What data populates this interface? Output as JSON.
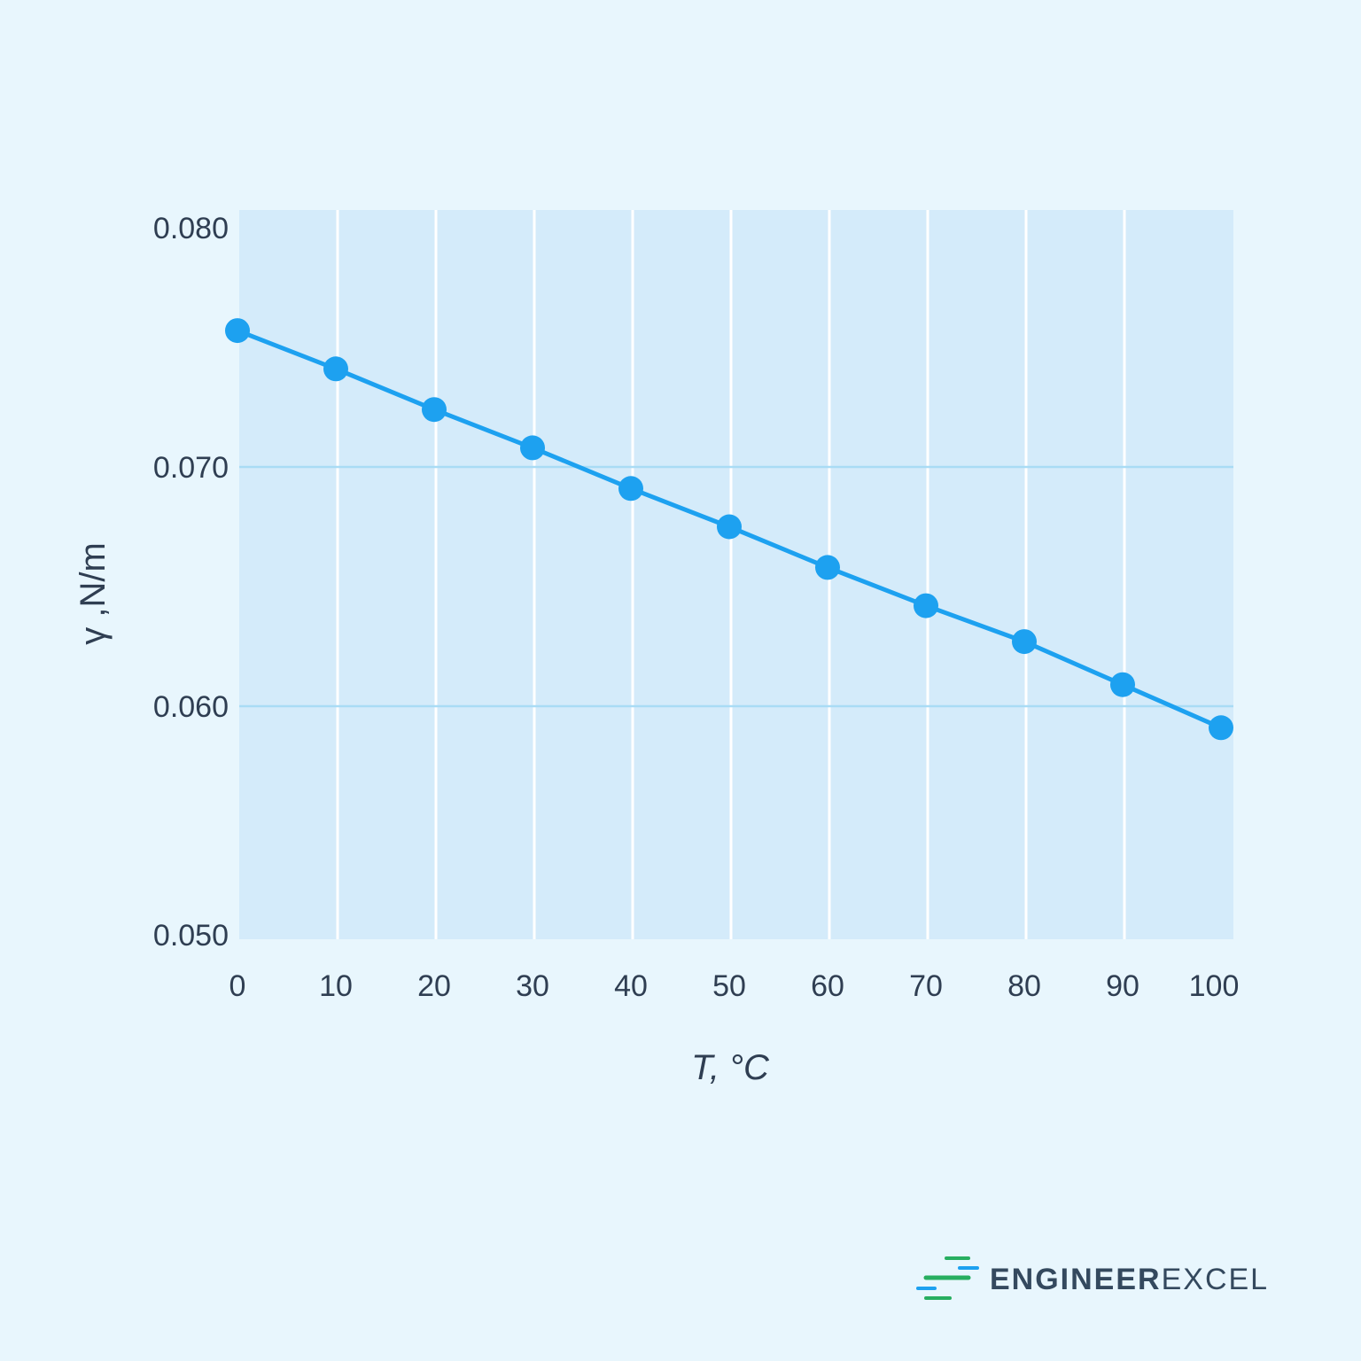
{
  "chart_data": {
    "type": "line",
    "title": "",
    "xlabel": "T, °C",
    "ylabel": "γ ,N/m",
    "xlim": [
      0,
      100
    ],
    "ylim": [
      0.05,
      0.08
    ],
    "x_ticks": [
      "0",
      "10",
      "20",
      "30",
      "40",
      "50",
      "60",
      "70",
      "80",
      "90",
      "100"
    ],
    "y_ticks": [
      "0.050",
      "0.060",
      "0.070",
      "0.080"
    ],
    "grid": true,
    "x": [
      0,
      10,
      20,
      30,
      40,
      50,
      60,
      70,
      80,
      90,
      100
    ],
    "values": [
      0.0757,
      0.0741,
      0.0724,
      0.0708,
      0.0691,
      0.0675,
      0.0658,
      0.0642,
      0.0627,
      0.0609,
      0.0591
    ],
    "colors": {
      "line": "#1da1f0",
      "plot_bg": "#d4ebfa",
      "page_bg": "#e8f6fd",
      "grid_h": "#a9dcf5",
      "grid_v": "#ffffff"
    }
  },
  "branding": {
    "logo_bold": "ENGINEER",
    "logo_light": "EXCEL"
  }
}
